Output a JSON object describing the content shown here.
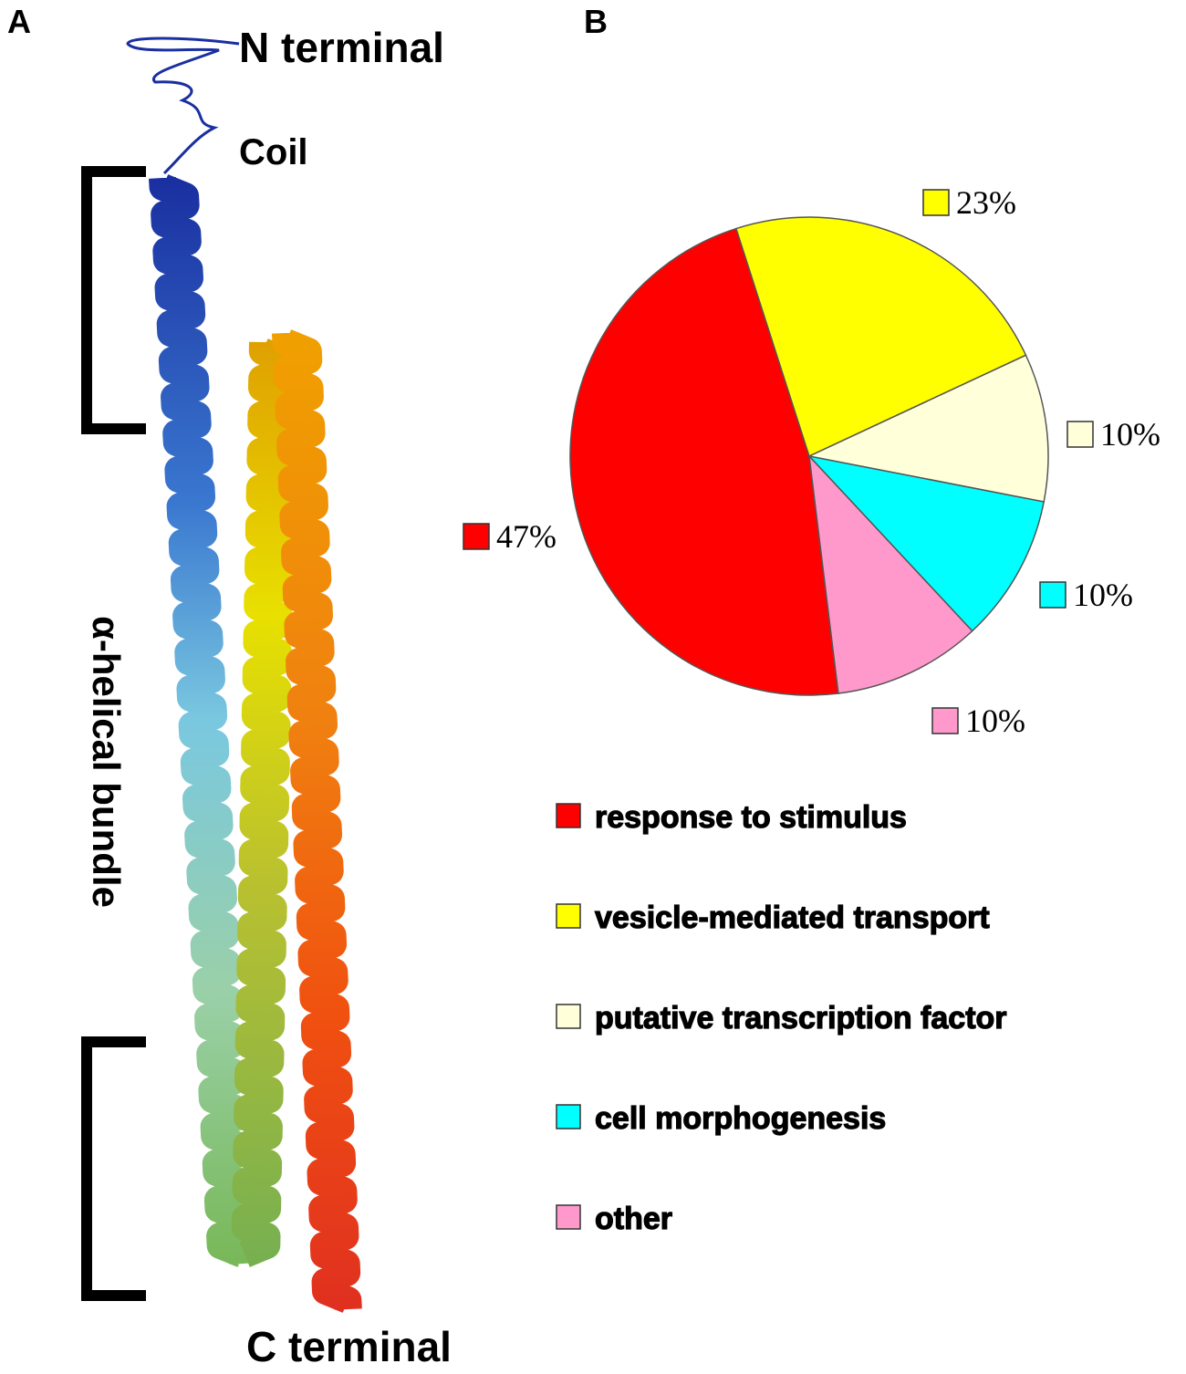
{
  "panel_a": {
    "label": "A",
    "annotations": [
      "N terminal",
      "Coil",
      "α-helical bundle",
      "C terminal"
    ]
  },
  "chart_data": {
    "type": "pie",
    "panel_label": "B",
    "categories": [
      "response to stimulus",
      "vesicle-mediated transport",
      "putative transcription factor",
      "cell morphogenesis",
      "other"
    ],
    "values": [
      47,
      23,
      10,
      10,
      10
    ],
    "value_labels": [
      "47%",
      "23%",
      "10%",
      "10%",
      "10%"
    ],
    "colors": [
      "#ff0000",
      "#ffff00",
      "#ffffd9",
      "#00ffff",
      "#ff99cc"
    ]
  }
}
